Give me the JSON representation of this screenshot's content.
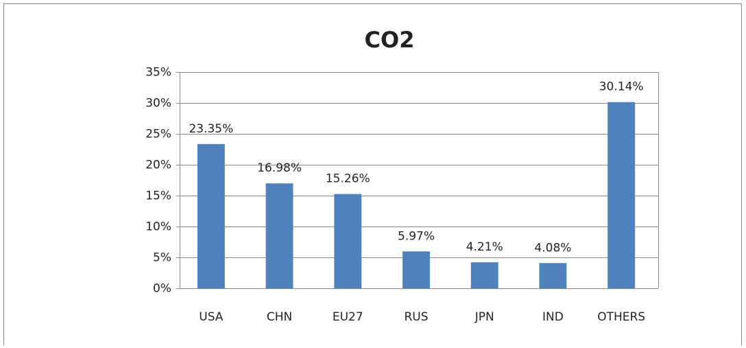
{
  "chart_data": {
    "type": "bar",
    "title": "CO2",
    "categories": [
      "USA",
      "CHN",
      "EU27",
      "RUS",
      "JPN",
      "IND",
      "OTHERS"
    ],
    "values": [
      23.35,
      16.98,
      15.26,
      5.97,
      4.21,
      4.08,
      30.14
    ],
    "value_labels": [
      "23.35%",
      "16.98%",
      "15.26%",
      "5.97%",
      "4.21%",
      "4.08%",
      "30.14%"
    ],
    "color": "#4f81bd",
    "ylim": [
      0,
      35
    ],
    "yticks": [
      {
        "value": 0,
        "label": "0%"
      },
      {
        "value": 5,
        "label": "5%"
      },
      {
        "value": 10,
        "label": "10%"
      },
      {
        "value": 15,
        "label": "15%"
      },
      {
        "value": 20,
        "label": "20%"
      },
      {
        "value": 25,
        "label": "25%"
      },
      {
        "value": 30,
        "label": "30%"
      },
      {
        "value": 35,
        "label": "35%"
      }
    ],
    "grid": true
  }
}
